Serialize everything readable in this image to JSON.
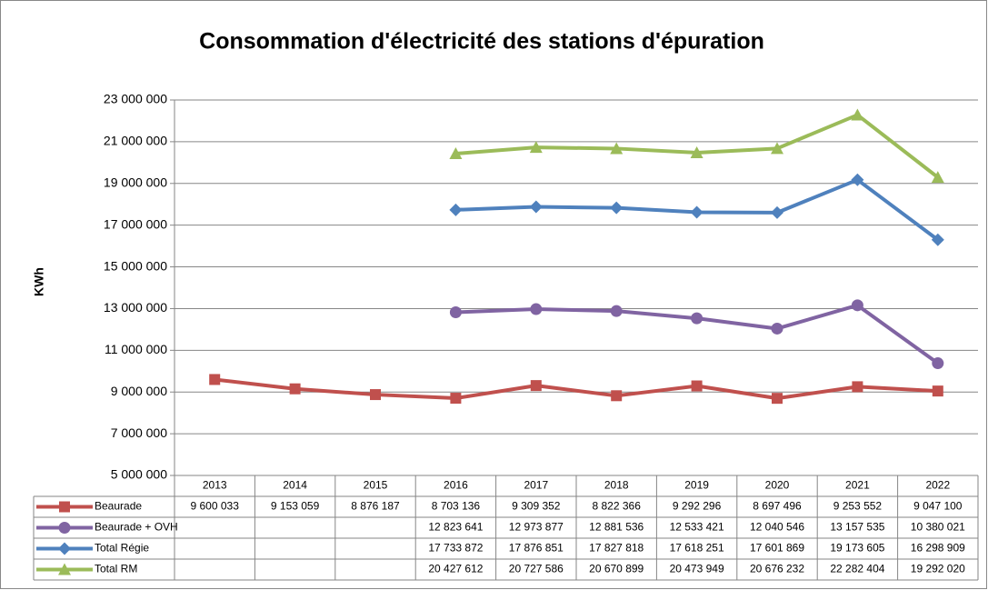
{
  "chart_data": {
    "type": "line",
    "title": "Consommation d'électricité des stations d'épuration",
    "y_label": "KWh",
    "categories": [
      "2013",
      "2014",
      "2015",
      "2016",
      "2017",
      "2018",
      "2019",
      "2020",
      "2021",
      "2022"
    ],
    "series": [
      {
        "name": "Beaurade",
        "color": "#c0504d",
        "marker": "square",
        "values": [
          9600033,
          9153059,
          8876187,
          8703136,
          9309352,
          8822366,
          9292296,
          8697496,
          9253552,
          9047100
        ],
        "value_labels": [
          "9 600 033",
          "9 153 059",
          "8 876 187",
          "8 703 136",
          "9 309 352",
          "8 822 366",
          "9 292 296",
          "8 697 496",
          "9 253 552",
          "9 047 100"
        ]
      },
      {
        "name": "Beaurade + OVH",
        "color": "#8064a2",
        "marker": "circle",
        "values": [
          null,
          null,
          null,
          12823641,
          12973877,
          12881536,
          12533421,
          12040546,
          13157535,
          10380021
        ],
        "value_labels": [
          null,
          null,
          null,
          "12 823 641",
          "12 973 877",
          "12 881 536",
          "12 533 421",
          "12 040 546",
          "13 157 535",
          "10 380 021"
        ]
      },
      {
        "name": "Total Régie",
        "color": "#4f81bd",
        "marker": "diamond",
        "values": [
          null,
          null,
          null,
          17733872,
          17876851,
          17827818,
          17618251,
          17601869,
          19173605,
          16298909
        ],
        "value_labels": [
          null,
          null,
          null,
          "17 733 872",
          "17 876 851",
          "17 827 818",
          "17 618 251",
          "17 601 869",
          "19 173 605",
          "16 298 909"
        ]
      },
      {
        "name": "Total RM",
        "color": "#9bbb59",
        "marker": "triangle",
        "values": [
          null,
          null,
          null,
          20427612,
          20727586,
          20670899,
          20473949,
          20676232,
          22282404,
          19292020
        ],
        "value_labels": [
          null,
          null,
          null,
          "20 427 612",
          "20 727 586",
          "20 670 899",
          "20 473 949",
          "20 676 232",
          "22 282 404",
          "19 292 020"
        ]
      }
    ],
    "ylim": [
      5000000,
      23000000
    ],
    "yticks": [
      {
        "value": 5000000,
        "label": "5 000 000"
      },
      {
        "value": 7000000,
        "label": "7 000 000"
      },
      {
        "value": 9000000,
        "label": "9 000 000"
      },
      {
        "value": 11000000,
        "label": "11 000 000"
      },
      {
        "value": 13000000,
        "label": "13 000 000"
      },
      {
        "value": 15000000,
        "label": "15 000 000"
      },
      {
        "value": 17000000,
        "label": "17 000 000"
      },
      {
        "value": 19000000,
        "label": "19 000 000"
      },
      {
        "value": 21000000,
        "label": "21 000 000"
      },
      {
        "value": 23000000,
        "label": "23 000 000"
      }
    ],
    "grid": true
  }
}
